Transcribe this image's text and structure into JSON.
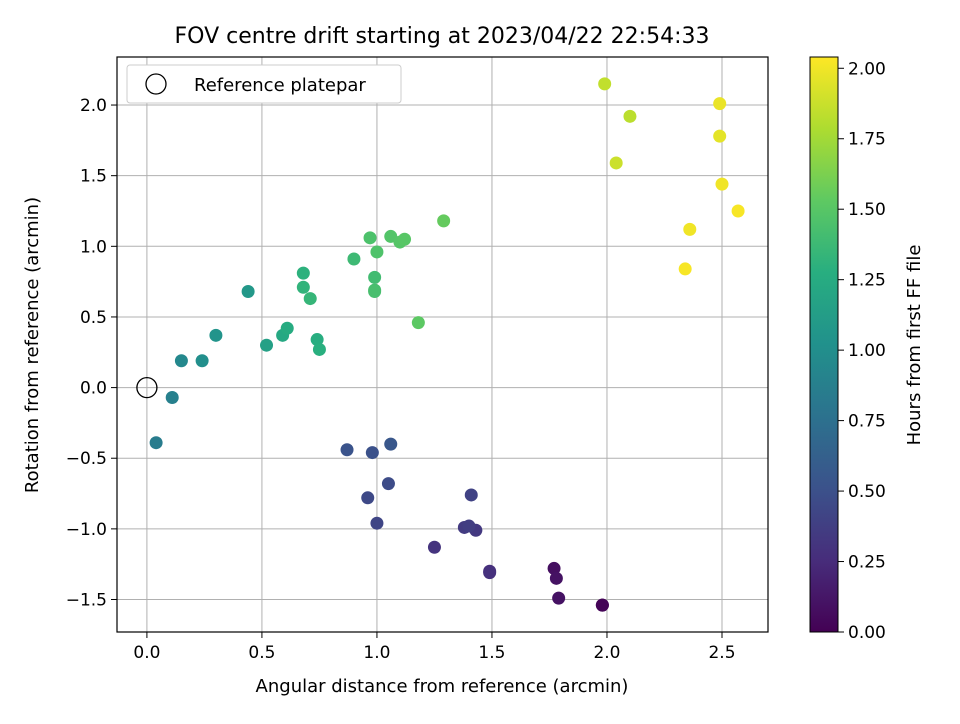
{
  "chart_data": {
    "type": "scatter",
    "title": "FOV centre drift starting at 2023/04/22 22:54:33",
    "xlabel": "Angular distance from reference (arcmin)",
    "ylabel": "Rotation from reference (arcmin)",
    "xlim": [
      -0.13,
      2.7
    ],
    "ylim": [
      -1.73,
      2.34
    ],
    "xticks": [
      0.0,
      0.5,
      1.0,
      1.5,
      2.0,
      2.5
    ],
    "xtick_labels": [
      "0.0",
      "0.5",
      "1.0",
      "1.5",
      "2.0",
      "2.5"
    ],
    "yticks": [
      -1.5,
      -1.0,
      -0.5,
      0.0,
      0.5,
      1.0,
      1.5,
      2.0
    ],
    "ytick_labels": [
      "−1.5",
      "−1.0",
      "−0.5",
      "0.0",
      "0.5",
      "1.0",
      "1.5",
      "2.0"
    ],
    "grid": true,
    "legend": {
      "placement": "top-left",
      "entries": [
        "Reference platepar"
      ]
    },
    "reference_point": {
      "x": 0.0,
      "y": 0.0,
      "label": "Reference platepar"
    },
    "colorbar": {
      "label": "Hours from first FF file",
      "colormap": "viridis",
      "range": [
        0.0,
        2.04
      ],
      "ticks": [
        0.0,
        0.25,
        0.5,
        0.75,
        1.0,
        1.25,
        1.5,
        1.75,
        2.0
      ],
      "tick_labels": [
        "0.00",
        "0.25",
        "0.50",
        "0.75",
        "1.00",
        "1.25",
        "1.50",
        "1.75",
        "2.00"
      ],
      "placement": "right"
    },
    "points": [
      {
        "x": 1.98,
        "y": -1.54,
        "c": 0.0
      },
      {
        "x": 1.98,
        "y": -1.54,
        "c": 0.02
      },
      {
        "x": 1.79,
        "y": -1.49,
        "c": 0.1
      },
      {
        "x": 1.77,
        "y": -1.28,
        "c": 0.08
      },
      {
        "x": 1.78,
        "y": -1.35,
        "c": 0.1
      },
      {
        "x": 1.49,
        "y": -1.3,
        "c": 0.27
      },
      {
        "x": 1.49,
        "y": -1.31,
        "c": 0.28
      },
      {
        "x": 1.25,
        "y": -1.13,
        "c": 0.3
      },
      {
        "x": 1.43,
        "y": -1.01,
        "c": 0.33
      },
      {
        "x": 1.38,
        "y": -0.99,
        "c": 0.35
      },
      {
        "x": 1.4,
        "y": -0.98,
        "c": 0.37
      },
      {
        "x": 1.41,
        "y": -0.76,
        "c": 0.4
      },
      {
        "x": 1.0,
        "y": -0.96,
        "c": 0.42
      },
      {
        "x": 0.96,
        "y": -0.78,
        "c": 0.45
      },
      {
        "x": 1.05,
        "y": -0.68,
        "c": 0.47
      },
      {
        "x": 0.98,
        "y": -0.46,
        "c": 0.5
      },
      {
        "x": 0.87,
        "y": -0.44,
        "c": 0.52
      },
      {
        "x": 1.06,
        "y": -0.4,
        "c": 0.55
      },
      {
        "x": 0.04,
        "y": -0.39,
        "c": 0.85
      },
      {
        "x": 0.11,
        "y": -0.07,
        "c": 0.88
      },
      {
        "x": 0.15,
        "y": 0.19,
        "c": 0.95
      },
      {
        "x": 0.24,
        "y": 0.19,
        "c": 1.0
      },
      {
        "x": 0.3,
        "y": 0.37,
        "c": 1.05
      },
      {
        "x": 0.44,
        "y": 0.68,
        "c": 1.08
      },
      {
        "x": 0.52,
        "y": 0.3,
        "c": 1.15
      },
      {
        "x": 0.59,
        "y": 0.37,
        "c": 1.22
      },
      {
        "x": 0.61,
        "y": 0.42,
        "c": 1.25
      },
      {
        "x": 0.74,
        "y": 0.34,
        "c": 1.27
      },
      {
        "x": 0.75,
        "y": 0.27,
        "c": 1.28
      },
      {
        "x": 0.68,
        "y": 0.81,
        "c": 1.3
      },
      {
        "x": 0.68,
        "y": 0.71,
        "c": 1.32
      },
      {
        "x": 0.71,
        "y": 0.63,
        "c": 1.34
      },
      {
        "x": 0.9,
        "y": 0.91,
        "c": 1.38
      },
      {
        "x": 0.99,
        "y": 0.78,
        "c": 1.4
      },
      {
        "x": 0.99,
        "y": 0.69,
        "c": 1.42
      },
      {
        "x": 0.99,
        "y": 0.68,
        "c": 1.43
      },
      {
        "x": 0.97,
        "y": 1.06,
        "c": 1.45
      },
      {
        "x": 1.0,
        "y": 0.96,
        "c": 1.46
      },
      {
        "x": 1.06,
        "y": 1.07,
        "c": 1.48
      },
      {
        "x": 1.1,
        "y": 1.03,
        "c": 1.49
      },
      {
        "x": 1.12,
        "y": 1.05,
        "c": 1.5
      },
      {
        "x": 1.18,
        "y": 0.46,
        "c": 1.52
      },
      {
        "x": 1.29,
        "y": 1.18,
        "c": 1.55
      },
      {
        "x": 1.99,
        "y": 2.15,
        "c": 1.85
      },
      {
        "x": 2.04,
        "y": 1.59,
        "c": 1.88
      },
      {
        "x": 2.1,
        "y": 1.92,
        "c": 1.83
      },
      {
        "x": 2.49,
        "y": 2.01,
        "c": 1.98
      },
      {
        "x": 2.49,
        "y": 1.78,
        "c": 1.96
      },
      {
        "x": 2.5,
        "y": 1.44,
        "c": 2.0
      },
      {
        "x": 2.57,
        "y": 1.25,
        "c": 2.02
      },
      {
        "x": 2.36,
        "y": 1.12,
        "c": 2.0
      },
      {
        "x": 2.34,
        "y": 0.84,
        "c": 2.02
      }
    ]
  }
}
